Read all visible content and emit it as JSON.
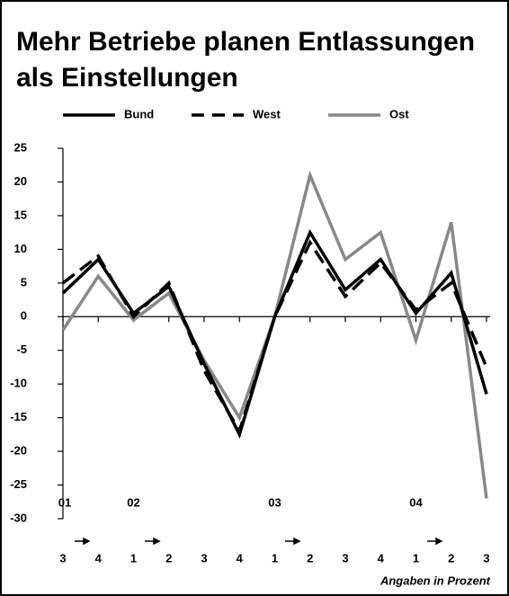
{
  "chart_data": {
    "type": "line",
    "title": [
      "Mehr Betriebe planen Entlassungen",
      "als Einstellungen"
    ],
    "categories": [
      "3",
      "4",
      "1",
      "2",
      "3",
      "4",
      "1",
      "2",
      "3",
      "4",
      "1",
      "2",
      "3"
    ],
    "year_labels": [
      "01",
      "02",
      "03",
      "04"
    ],
    "series": [
      {
        "name": "Bund",
        "color": "#000000",
        "dash": "solid",
        "values": [
          3.5,
          8.5,
          0.5,
          4.5,
          -7,
          -17.5,
          0,
          12.5,
          4,
          8.5,
          0.5,
          6.5,
          -11.5
        ]
      },
      {
        "name": "West",
        "color": "#000000",
        "dash": "dashed",
        "values": [
          5,
          9,
          0,
          5,
          -8,
          -17,
          0,
          11,
          3,
          8,
          1,
          5,
          -7.5
        ]
      },
      {
        "name": "Ost",
        "color": "#888888",
        "dash": "solid",
        "values": [
          -2,
          6,
          -0.5,
          3.5,
          -6.5,
          -15,
          0,
          21,
          8.5,
          12.5,
          -3.5,
          14,
          -27
        ]
      }
    ],
    "ylim": [
      -30,
      25
    ],
    "yticks": [
      25,
      20,
      15,
      10,
      5,
      0,
      -5,
      -10,
      -15,
      -20,
      -25,
      -30
    ],
    "note": "Angaben in Prozent"
  }
}
